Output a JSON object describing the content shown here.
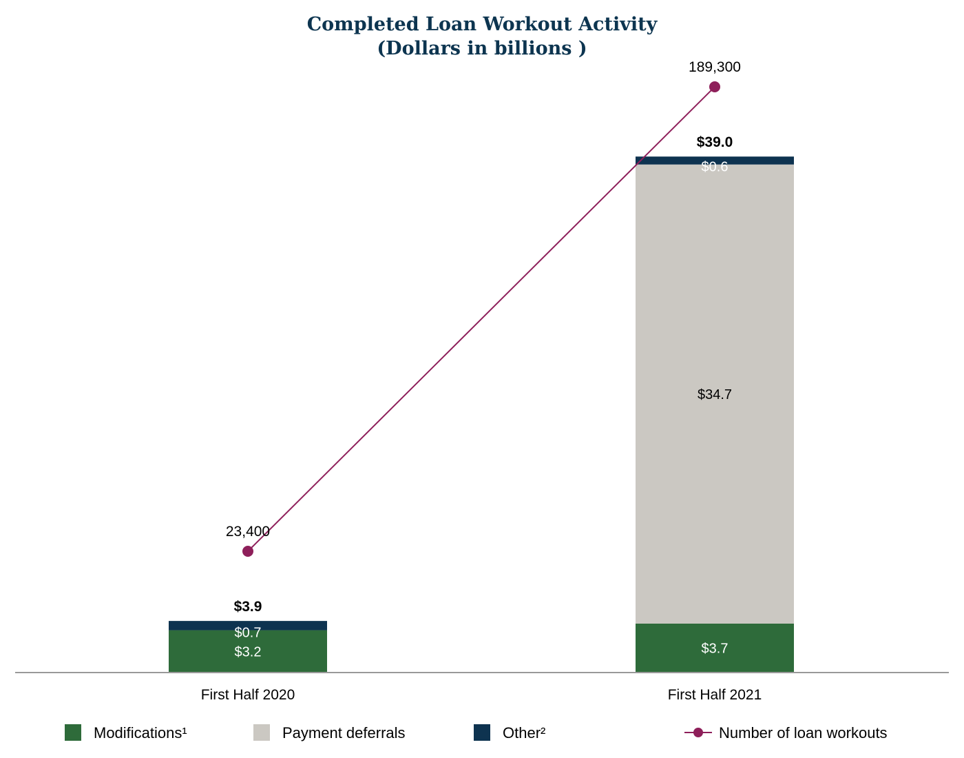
{
  "chart_data": {
    "type": "bar",
    "stacked": true,
    "title": [
      "Completed Loan Workout Activity",
      "(Dollars in billions )"
    ],
    "categories": [
      "First Half 2020",
      "First Half 2021"
    ],
    "series": [
      {
        "name": "Modifications¹",
        "values": [
          3.2,
          3.7
        ],
        "labels": [
          "$3.2",
          "$3.7"
        ],
        "color": "#2e6b3a",
        "label_color": "#ffffff"
      },
      {
        "name": "Payment deferrals",
        "values": [
          0,
          34.7
        ],
        "labels": [
          "",
          "$34.7"
        ],
        "color": "#cbc8c2",
        "label_color": "#000000"
      },
      {
        "name": "Other²",
        "values": [
          0.7,
          0.6
        ],
        "labels": [
          "$0.7",
          "$0.6"
        ],
        "color": "#0e3350",
        "label_color": "#ffffff"
      }
    ],
    "totals": [
      "$3.9",
      "$39.0"
    ],
    "line_series": {
      "name": "Number of loan workouts",
      "values": [
        23400,
        189300
      ],
      "labels": [
        "23,400",
        "189,300"
      ],
      "color": "#8e1f5a"
    },
    "ylim": [
      0,
      40
    ],
    "line_ylim": [
      0,
      200000
    ],
    "grid": false,
    "legend_position": "bottom",
    "axis_color": "#999999"
  }
}
